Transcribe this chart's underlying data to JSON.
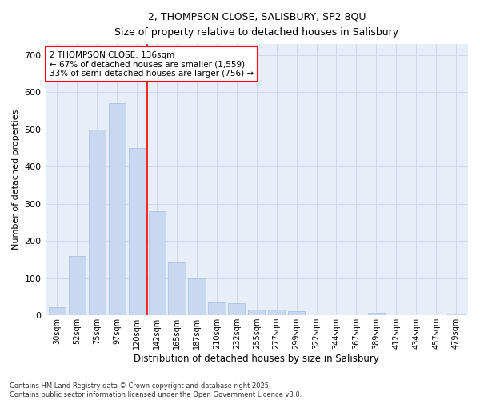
{
  "title_line1": "2, THOMPSON CLOSE, SALISBURY, SP2 8QU",
  "title_line2": "Size of property relative to detached houses in Salisbury",
  "xlabel": "Distribution of detached houses by size in Salisbury",
  "ylabel": "Number of detached properties",
  "categories": [
    "30sqm",
    "52sqm",
    "75sqm",
    "97sqm",
    "120sqm",
    "142sqm",
    "165sqm",
    "187sqm",
    "210sqm",
    "232sqm",
    "255sqm",
    "277sqm",
    "299sqm",
    "322sqm",
    "344sqm",
    "367sqm",
    "389sqm",
    "412sqm",
    "434sqm",
    "457sqm",
    "479sqm"
  ],
  "values": [
    22,
    160,
    500,
    570,
    450,
    280,
    143,
    100,
    35,
    33,
    15,
    15,
    12,
    0,
    0,
    0,
    7,
    0,
    0,
    0,
    5
  ],
  "bar_color": "#c8d8f0",
  "bar_edge_color": "#aac4e8",
  "grid_color": "#d0d8e8",
  "vline_x": 4.5,
  "vline_color": "red",
  "annotation_text": "2 THOMPSON CLOSE: 136sqm\n← 67% of detached houses are smaller (1,559)\n33% of semi-detached houses are larger (756) →",
  "annotation_box_color": "white",
  "annotation_box_edge": "red",
  "footnote": "Contains HM Land Registry data © Crown copyright and database right 2025.\nContains public sector information licensed under the Open Government Licence v3.0.",
  "ylim": [
    0,
    730
  ],
  "background_color": "#ffffff",
  "plot_background": "#e8eef8"
}
